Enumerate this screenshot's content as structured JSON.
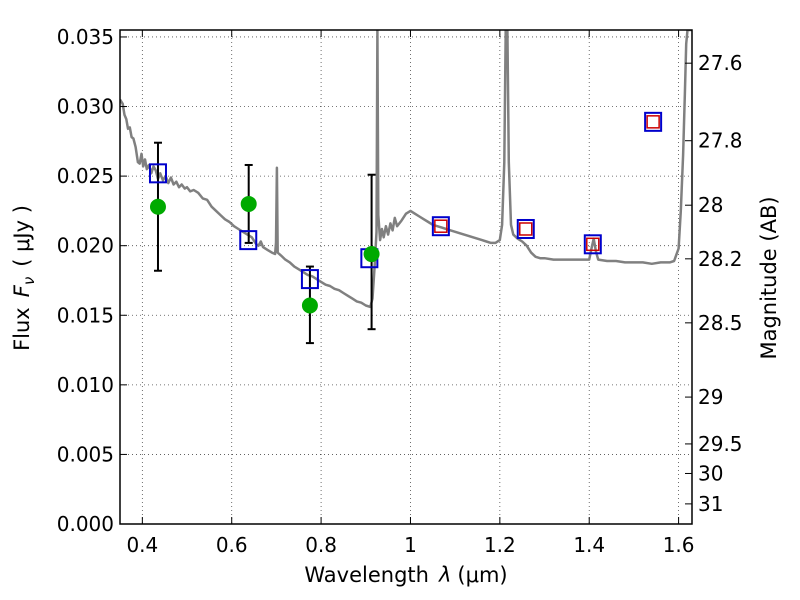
{
  "chart_data": {
    "type": "scatter",
    "xlabel_prefix": "Wavelength",
    "xlabel_symbol": "λ",
    "xlabel_unit": "(μm)",
    "ylabel_prefix": "Flux",
    "ylabel_symbol": "F",
    "ylabel_subscript": "ν",
    "ylabel_unit": "( μJy )",
    "y2label": "Magnitude (AB)",
    "xlim": [
      0.35,
      1.63
    ],
    "ylim": [
      0.0,
      0.0355
    ],
    "grid": true,
    "x_ticks": [
      {
        "value": 0.4,
        "label": "0.4"
      },
      {
        "value": 0.6,
        "label": "0.6"
      },
      {
        "value": 0.8,
        "label": "0.8"
      },
      {
        "value": 1.0,
        "label": "1"
      },
      {
        "value": 1.2,
        "label": "1.2"
      },
      {
        "value": 1.4,
        "label": "1.4"
      },
      {
        "value": 1.6,
        "label": "1.6"
      }
    ],
    "y_ticks": [
      {
        "value": 0.0,
        "label": "0.000"
      },
      {
        "value": 0.005,
        "label": "0.005"
      },
      {
        "value": 0.01,
        "label": "0.010"
      },
      {
        "value": 0.015,
        "label": "0.015"
      },
      {
        "value": 0.02,
        "label": "0.020"
      },
      {
        "value": 0.025,
        "label": "0.025"
      },
      {
        "value": 0.03,
        "label": "0.030"
      },
      {
        "value": 0.035,
        "label": "0.035"
      }
    ],
    "y2_ticks": [
      {
        "mag": 27.6,
        "label": "27.6"
      },
      {
        "mag": 27.8,
        "label": "27.8"
      },
      {
        "mag": 28.0,
        "label": "28"
      },
      {
        "mag": 28.2,
        "label": "28.2"
      },
      {
        "mag": 28.5,
        "label": "28.5"
      },
      {
        "mag": 29.0,
        "label": "29"
      },
      {
        "mag": 29.5,
        "label": "29.5"
      },
      {
        "mag": 30.0,
        "label": "30"
      },
      {
        "mag": 31.0,
        "label": "31"
      }
    ],
    "model_spectrum": {
      "color": "#808080",
      "points": [
        [
          0.35,
          0.0305
        ],
        [
          0.356,
          0.0302
        ],
        [
          0.36,
          0.0294
        ],
        [
          0.364,
          0.0291
        ],
        [
          0.368,
          0.0284
        ],
        [
          0.372,
          0.0285
        ],
        [
          0.376,
          0.0278
        ],
        [
          0.38,
          0.0277
        ],
        [
          0.385,
          0.0271
        ],
        [
          0.39,
          0.026
        ],
        [
          0.394,
          0.0259
        ],
        [
          0.398,
          0.0266
        ],
        [
          0.402,
          0.0257
        ],
        [
          0.406,
          0.0262
        ],
        [
          0.41,
          0.0255
        ],
        [
          0.415,
          0.0258
        ],
        [
          0.42,
          0.0252
        ],
        [
          0.425,
          0.0257
        ],
        [
          0.43,
          0.0254
        ],
        [
          0.435,
          0.0248
        ],
        [
          0.44,
          0.0252
        ],
        [
          0.446,
          0.0247
        ],
        [
          0.452,
          0.025
        ],
        [
          0.458,
          0.0245
        ],
        [
          0.464,
          0.0249
        ],
        [
          0.47,
          0.0244
        ],
        [
          0.476,
          0.0246
        ],
        [
          0.482,
          0.0242
        ],
        [
          0.488,
          0.0244
        ],
        [
          0.495,
          0.0241
        ],
        [
          0.5,
          0.0242
        ],
        [
          0.507,
          0.0239
        ],
        [
          0.515,
          0.024
        ],
        [
          0.525,
          0.0238
        ],
        [
          0.535,
          0.0234
        ],
        [
          0.545,
          0.0233
        ],
        [
          0.555,
          0.0228
        ],
        [
          0.565,
          0.0225
        ],
        [
          0.575,
          0.0222
        ],
        [
          0.585,
          0.0219
        ],
        [
          0.595,
          0.0217
        ],
        [
          0.605,
          0.0214
        ],
        [
          0.615,
          0.0212
        ],
        [
          0.625,
          0.021
        ],
        [
          0.635,
          0.0208
        ],
        [
          0.645,
          0.0206
        ],
        [
          0.655,
          0.0201
        ],
        [
          0.66,
          0.02
        ],
        [
          0.665,
          0.0203
        ],
        [
          0.67,
          0.0199
        ],
        [
          0.68,
          0.0197
        ],
        [
          0.69,
          0.0195
        ],
        [
          0.697,
          0.0194
        ],
        [
          0.699,
          0.0202
        ],
        [
          0.701,
          0.0256
        ],
        [
          0.703,
          0.0195
        ],
        [
          0.71,
          0.0193
        ],
        [
          0.72,
          0.019
        ],
        [
          0.73,
          0.0188
        ],
        [
          0.74,
          0.0185
        ],
        [
          0.75,
          0.0183
        ],
        [
          0.76,
          0.0181
        ],
        [
          0.77,
          0.0179
        ],
        [
          0.78,
          0.0178
        ],
        [
          0.79,
          0.0176
        ],
        [
          0.8,
          0.0174
        ],
        [
          0.81,
          0.0172
        ],
        [
          0.82,
          0.0171
        ],
        [
          0.83,
          0.0169
        ],
        [
          0.84,
          0.0168
        ],
        [
          0.85,
          0.0166
        ],
        [
          0.86,
          0.0164
        ],
        [
          0.87,
          0.0162
        ],
        [
          0.88,
          0.016
        ],
        [
          0.89,
          0.0159
        ],
        [
          0.9,
          0.0157
        ],
        [
          0.91,
          0.0156
        ],
        [
          0.915,
          0.0162
        ],
        [
          0.92,
          0.0186
        ],
        [
          0.924,
          0.021
        ],
        [
          0.926,
          0.0355
        ],
        [
          0.928,
          0.0222
        ],
        [
          0.932,
          0.0204
        ],
        [
          0.936,
          0.0212
        ],
        [
          0.94,
          0.0206
        ],
        [
          0.945,
          0.0214
        ],
        [
          0.95,
          0.0208
        ],
        [
          0.955,
          0.0216
        ],
        [
          0.96,
          0.0211
        ],
        [
          0.965,
          0.022
        ],
        [
          0.97,
          0.0214
        ],
        [
          0.98,
          0.0218
        ],
        [
          0.99,
          0.0223
        ],
        [
          1.0,
          0.0225
        ],
        [
          1.01,
          0.0223
        ],
        [
          1.02,
          0.0221
        ],
        [
          1.03,
          0.0219
        ],
        [
          1.04,
          0.0217
        ],
        [
          1.05,
          0.0215
        ],
        [
          1.06,
          0.0214
        ],
        [
          1.07,
          0.0213
        ],
        [
          1.08,
          0.0212
        ],
        [
          1.09,
          0.0211
        ],
        [
          1.1,
          0.021
        ],
        [
          1.11,
          0.0209
        ],
        [
          1.12,
          0.0208
        ],
        [
          1.13,
          0.0207
        ],
        [
          1.14,
          0.0206
        ],
        [
          1.15,
          0.0205
        ],
        [
          1.16,
          0.0204
        ],
        [
          1.17,
          0.0203
        ],
        [
          1.18,
          0.0202
        ],
        [
          1.19,
          0.0202
        ],
        [
          1.2,
          0.0204
        ],
        [
          1.205,
          0.0215
        ],
        [
          1.21,
          0.026
        ],
        [
          1.213,
          0.0355
        ],
        [
          1.217,
          0.0355
        ],
        [
          1.22,
          0.026
        ],
        [
          1.225,
          0.0215
        ],
        [
          1.23,
          0.0208
        ],
        [
          1.24,
          0.0205
        ],
        [
          1.25,
          0.0203
        ],
        [
          1.26,
          0.02
        ],
        [
          1.27,
          0.0195
        ],
        [
          1.28,
          0.0192
        ],
        [
          1.29,
          0.0191
        ],
        [
          1.3,
          0.0191
        ],
        [
          1.32,
          0.019
        ],
        [
          1.34,
          0.019
        ],
        [
          1.36,
          0.019
        ],
        [
          1.38,
          0.019
        ],
        [
          1.4,
          0.019
        ],
        [
          1.405,
          0.0198
        ],
        [
          1.41,
          0.0205
        ],
        [
          1.415,
          0.0196
        ],
        [
          1.42,
          0.019
        ],
        [
          1.44,
          0.0189
        ],
        [
          1.46,
          0.0189
        ],
        [
          1.48,
          0.0188
        ],
        [
          1.5,
          0.0188
        ],
        [
          1.52,
          0.0188
        ],
        [
          1.54,
          0.0187
        ],
        [
          1.56,
          0.0188
        ],
        [
          1.58,
          0.0188
        ],
        [
          1.59,
          0.0189
        ],
        [
          1.6,
          0.0198
        ],
        [
          1.605,
          0.0225
        ],
        [
          1.61,
          0.0265
        ],
        [
          1.614,
          0.031
        ],
        [
          1.617,
          0.0345
        ],
        [
          1.62,
          0.0355
        ],
        [
          1.63,
          0.0355
        ]
      ]
    },
    "observed_points": {
      "color": "#00aa00",
      "points": [
        {
          "x": 0.435,
          "y": 0.0228,
          "yerr_low": 0.0182,
          "yerr_high": 0.0274
        },
        {
          "x": 0.638,
          "y": 0.023,
          "yerr_low": 0.0202,
          "yerr_high": 0.0258
        },
        {
          "x": 0.775,
          "y": 0.0157,
          "yerr_low": 0.013,
          "yerr_high": 0.0185
        },
        {
          "x": 0.913,
          "y": 0.0194,
          "yerr_low": 0.014,
          "yerr_high": 0.0251
        }
      ]
    },
    "model_photometry_blue": {
      "color": "#0000cc",
      "points": [
        {
          "x": 0.435,
          "y": 0.0252
        },
        {
          "x": 0.637,
          "y": 0.0204
        },
        {
          "x": 0.775,
          "y": 0.0176
        },
        {
          "x": 0.908,
          "y": 0.0191
        },
        {
          "x": 1.068,
          "y": 0.0214
        },
        {
          "x": 1.258,
          "y": 0.0212
        },
        {
          "x": 1.408,
          "y": 0.0201
        },
        {
          "x": 1.543,
          "y": 0.0289
        }
      ]
    },
    "model_photometry_red": {
      "color": "#cc0000",
      "points": [
        {
          "x": 1.068,
          "y": 0.0214
        },
        {
          "x": 1.258,
          "y": 0.0212
        },
        {
          "x": 1.408,
          "y": 0.0201
        },
        {
          "x": 1.543,
          "y": 0.0289
        }
      ]
    }
  }
}
